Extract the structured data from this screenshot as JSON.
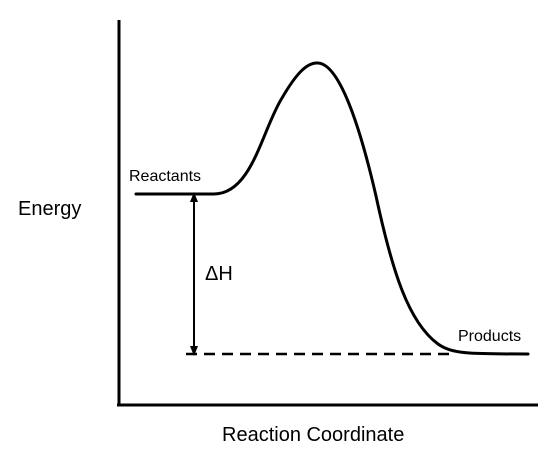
{
  "diagram": {
    "type": "energy-profile",
    "y_axis_label": "Energy",
    "x_axis_label": "Reaction Coordinate",
    "reactants_label": "Reactants",
    "products_label": "Products",
    "enthalpy_label": "ΔH",
    "stroke_color": "#000000",
    "background_color": "#ffffff"
  }
}
